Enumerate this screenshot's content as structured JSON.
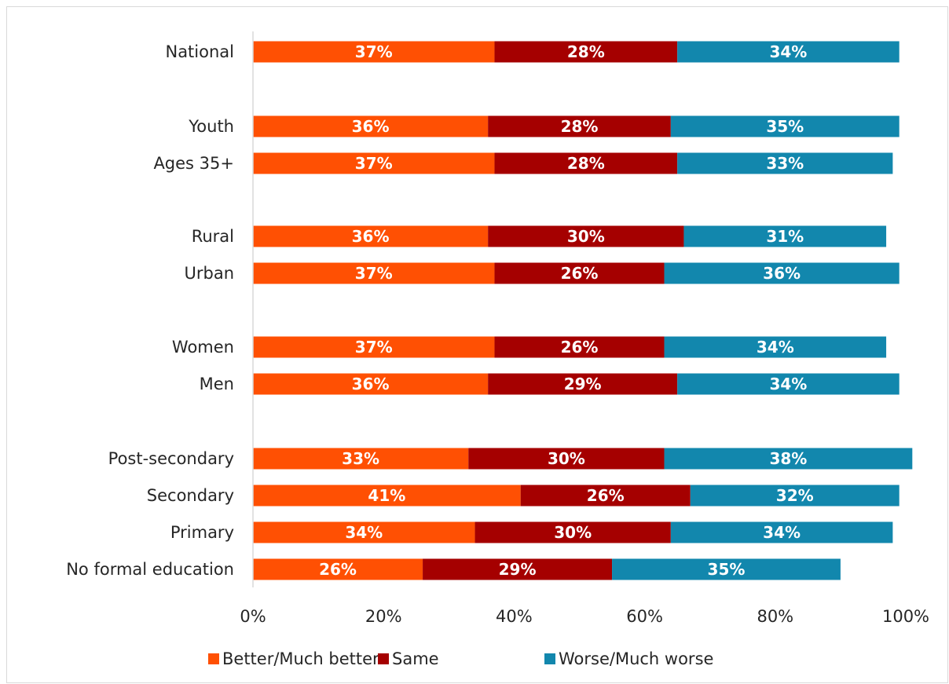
{
  "chart_data": {
    "type": "bar",
    "orientation": "horizontal",
    "stacked": true,
    "categories": [
      "National",
      "Youth",
      "Ages 35+",
      "Rural",
      "Urban",
      "Women",
      "Men",
      "Post-secondary",
      "Secondary",
      "Primary",
      "No formal education"
    ],
    "series": [
      {
        "name": "Better/Much better",
        "color": "#FF5003",
        "values": [
          37,
          36,
          37,
          36,
          37,
          37,
          36,
          33,
          41,
          34,
          26
        ],
        "labels": [
          "37%",
          "36%",
          "37%",
          "36%",
          "37%",
          "37%",
          "36%",
          "33%",
          "41%",
          "34%",
          "26%"
        ]
      },
      {
        "name": "Same",
        "color": "#A50000",
        "values": [
          28,
          28,
          28,
          30,
          26,
          26,
          29,
          30,
          26,
          30,
          29
        ],
        "labels": [
          "28%",
          "28%",
          "28%",
          "30%",
          "26%",
          "26%",
          "29%",
          "30%",
          "26%",
          "30%",
          "29%"
        ]
      },
      {
        "name": "Worse/Much worse",
        "color": "#1287AD",
        "values": [
          34,
          35,
          33,
          31,
          36,
          34,
          34,
          38,
          32,
          34,
          35
        ],
        "labels": [
          "34%",
          "35%",
          "33%",
          "31%",
          "36%",
          "34%",
          "34%",
          "38%",
          "32%",
          "34%",
          "35%"
        ]
      }
    ],
    "xlim": [
      0,
      100
    ],
    "xticks": [
      "0%",
      "20%",
      "40%",
      "60%",
      "80%",
      "100%"
    ],
    "grid": false,
    "legend_position": "bottom"
  }
}
